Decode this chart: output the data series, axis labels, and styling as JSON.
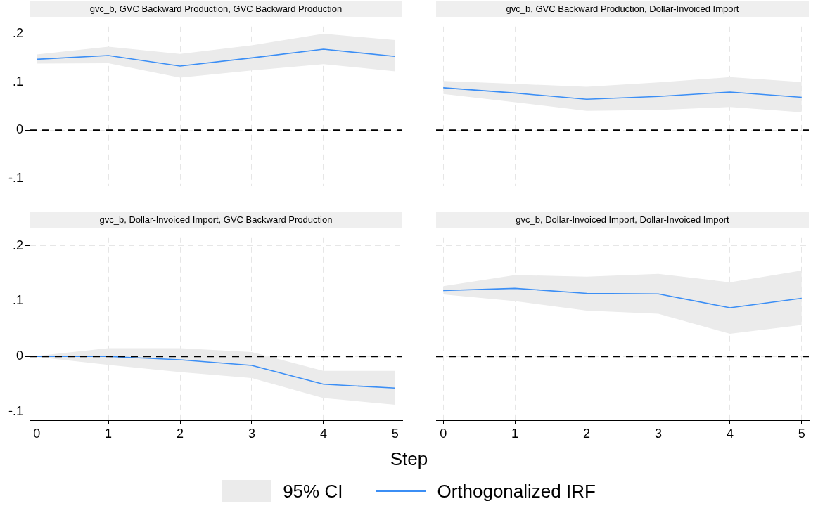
{
  "chart_data": [
    {
      "type": "line",
      "title": "gvc_b, GVC Backward Production, GVC Backward Production",
      "x": [
        0,
        1,
        2,
        3,
        4,
        5
      ],
      "xlim": [
        -0.1,
        5.1
      ],
      "xticks": [
        0,
        1,
        2,
        3,
        4,
        5
      ],
      "ylim": [
        -0.115,
        0.215
      ],
      "yticks": [
        {
          "value": -0.1,
          "label": "-.1"
        },
        0,
        {
          "value": 0.1,
          "label": ".1"
        },
        {
          "value": 0.2,
          "label": ".2"
        }
      ],
      "tick_labels": "y",
      "grid": true,
      "series": [
        {
          "color": "#3b8ef5",
          "values": [
            0.147,
            0.155,
            0.133,
            0.15,
            0.168,
            0.153
          ],
          "lower": [
            0.138,
            0.139,
            0.109,
            0.124,
            0.137,
            0.122
          ],
          "upper": [
            0.157,
            0.173,
            0.158,
            0.176,
            0.2,
            0.187
          ]
        }
      ],
      "ref_lines": [
        {
          "axis": "y",
          "value": 0,
          "color": "#000000",
          "line_style": "dashed"
        }
      ]
    },
    {
      "type": "line",
      "title": "gvc_b, GVC Backward Production, Dollar-Invoiced Import",
      "x": [
        0,
        1,
        2,
        3,
        4,
        5
      ],
      "xlim": [
        -0.1,
        5.1
      ],
      "xticks": [
        0,
        1,
        2,
        3,
        4,
        5
      ],
      "ylim": [
        -0.115,
        0.215
      ],
      "yticks": [
        -0.1,
        0,
        0.1,
        0.2
      ],
      "tick_labels": false,
      "grid": true,
      "series": [
        {
          "color": "#3b8ef5",
          "values": [
            0.088,
            0.077,
            0.064,
            0.07,
            0.079,
            0.068
          ],
          "lower": [
            0.075,
            0.058,
            0.04,
            0.042,
            0.048,
            0.037
          ],
          "upper": [
            0.102,
            0.096,
            0.09,
            0.099,
            0.11,
            0.1
          ]
        }
      ],
      "ref_lines": [
        {
          "axis": "y",
          "value": 0,
          "color": "#000000",
          "line_style": "dashed"
        }
      ]
    },
    {
      "type": "line",
      "title": "gvc_b, Dollar-Invoiced Import, GVC Backward Production",
      "x": [
        0,
        1,
        2,
        3,
        4,
        5
      ],
      "xlim": [
        -0.1,
        5.1
      ],
      "xticks": [
        0,
        1,
        2,
        3,
        4,
        5
      ],
      "ylim": [
        -0.115,
        0.215
      ],
      "yticks": [
        {
          "value": -0.1,
          "label": "-.1"
        },
        0,
        {
          "value": 0.1,
          "label": ".1"
        },
        {
          "value": 0.2,
          "label": ".2"
        }
      ],
      "grid": true,
      "series": [
        {
          "color": "#3b8ef5",
          "values": [
            0,
            0,
            -0.006,
            -0.016,
            -0.05,
            -0.057
          ],
          "lower": [
            -0.001,
            -0.015,
            -0.028,
            -0.039,
            -0.075,
            -0.087
          ],
          "upper": [
            0.001,
            0.015,
            0.015,
            0.008,
            -0.026,
            -0.026
          ]
        }
      ],
      "ref_lines": [
        {
          "axis": "y",
          "value": 0,
          "color": "#000000",
          "line_style": "dashed"
        }
      ]
    },
    {
      "type": "line",
      "title": "gvc_b, Dollar-Invoiced Import, Dollar-Invoiced Import",
      "xlabel": "Step",
      "legend": "bottom",
      "annotations": [
        "95% CI"
      ],
      "x": [
        0,
        1,
        2,
        3,
        4,
        5
      ],
      "xlim": [
        -0.1,
        5.1
      ],
      "xticks": [
        0,
        1,
        2,
        3,
        4,
        5
      ],
      "ylim": [
        -0.115,
        0.215
      ],
      "yticks": [
        -0.1,
        0,
        0.1,
        0.2
      ],
      "tick_labels": "x",
      "grid": true,
      "series": [
        {
          "name": "Orthogonalized IRF",
          "color": "#3b8ef5",
          "values": [
            0.119,
            0.123,
            0.114,
            0.113,
            0.088,
            0.105
          ],
          "lower": [
            0.112,
            0.1,
            0.083,
            0.077,
            0.041,
            0.057
          ],
          "upper": [
            0.127,
            0.147,
            0.144,
            0.149,
            0.134,
            0.155
          ]
        }
      ],
      "ref_lines": [
        {
          "axis": "y",
          "value": 0,
          "color": "#000000",
          "line_style": "dashed"
        }
      ]
    }
  ]
}
